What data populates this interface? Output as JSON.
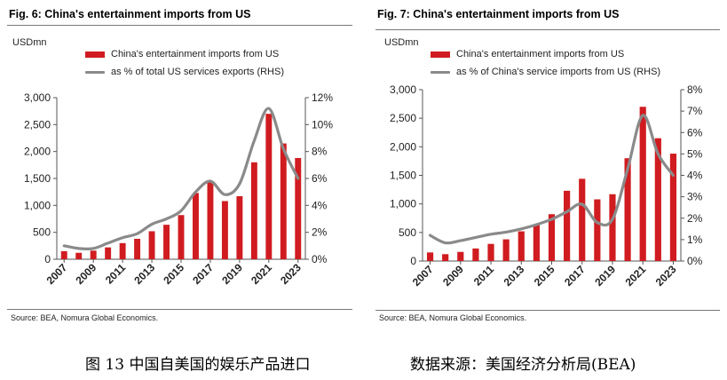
{
  "chart_data": [
    {
      "type": "bar",
      "title": "Fig. 6: China's entertainment imports from US",
      "unit_left": "USDmn",
      "categories": [
        "2007",
        "2008",
        "2009",
        "2010",
        "2011",
        "2012",
        "2013",
        "2014",
        "2015",
        "2016",
        "2017",
        "2018",
        "2019",
        "2020",
        "2021",
        "2022",
        "2023"
      ],
      "x_tick_labels": [
        "2007",
        "2009",
        "2011",
        "2013",
        "2015",
        "2017",
        "2019",
        "2021",
        "2023"
      ],
      "series": [
        {
          "name": "China's entertainment imports from US",
          "kind": "bar",
          "axis": "left",
          "values": [
            150,
            120,
            160,
            220,
            300,
            380,
            520,
            640,
            820,
            1230,
            1440,
            1080,
            1170,
            1800,
            2700,
            2150,
            1880
          ]
        },
        {
          "name": "as % of total US services exports (RHS)",
          "kind": "line",
          "axis": "right",
          "values": [
            1.0,
            0.8,
            0.8,
            1.2,
            1.6,
            1.9,
            2.6,
            3.0,
            3.6,
            5.0,
            5.8,
            4.8,
            5.6,
            8.8,
            11.2,
            8.2,
            6.0
          ]
        }
      ],
      "ylim_left": [
        0,
        3000
      ],
      "ylim_right": [
        0,
        12
      ],
      "y_ticks_left": [
        "0",
        "500",
        "1,000",
        "1,500",
        "2,000",
        "2,500",
        "3,000"
      ],
      "y_ticks_right": [
        "0%",
        "2%",
        "4%",
        "6%",
        "8%",
        "10%",
        "12%"
      ],
      "legend_position": "top",
      "source": "Source: BEA, Nomura Global Economics."
    },
    {
      "type": "bar",
      "title": "Fig. 7: China's entertainment imports from US",
      "unit_left": "USDmn",
      "categories": [
        "2007",
        "2008",
        "2009",
        "2010",
        "2011",
        "2012",
        "2013",
        "2014",
        "2015",
        "2016",
        "2017",
        "2018",
        "2019",
        "2020",
        "2021",
        "2022",
        "2023"
      ],
      "x_tick_labels": [
        "2007",
        "2009",
        "2011",
        "2013",
        "2015",
        "2017",
        "2019",
        "2021",
        "2023"
      ],
      "series": [
        {
          "name": "China's entertainment imports from US",
          "kind": "bar",
          "axis": "left",
          "values": [
            150,
            120,
            160,
            220,
            300,
            380,
            520,
            640,
            820,
            1230,
            1440,
            1080,
            1170,
            1800,
            2700,
            2150,
            1880
          ]
        },
        {
          "name": "as % of China's service imports from US (RHS)",
          "kind": "line",
          "axis": "right",
          "values": [
            1.2,
            0.85,
            0.95,
            1.1,
            1.25,
            1.35,
            1.5,
            1.7,
            1.95,
            2.3,
            2.65,
            1.8,
            1.95,
            4.3,
            6.8,
            5.0,
            4.0
          ]
        }
      ],
      "ylim_left": [
        0,
        3000
      ],
      "ylim_right": [
        0,
        8
      ],
      "y_ticks_left": [
        "0",
        "500",
        "1,000",
        "1,500",
        "2,000",
        "2,500",
        "3,000"
      ],
      "y_ticks_right": [
        "0%",
        "1%",
        "2%",
        "3%",
        "4%",
        "5%",
        "6%",
        "7%",
        "8%"
      ],
      "legend_position": "top",
      "source": "Source: BEA, Nomura Global Economics."
    }
  ],
  "colors": {
    "bar": "#d01c20",
    "line": "#8a8a8a",
    "axis": "#555555"
  },
  "captions": {
    "left": "图 13 中国自美国的娱乐产品进口",
    "right": "数据来源：美国经济分析局(BEA)"
  }
}
